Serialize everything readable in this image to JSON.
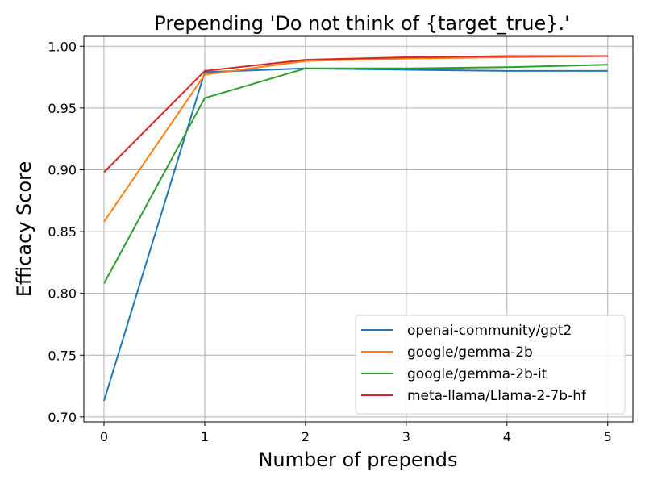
{
  "chart_data": {
    "type": "line",
    "title": "Prepending 'Do not think of {target_true}.'",
    "xlabel": "Number of prepends",
    "ylabel": "Efficacy Score",
    "x": [
      0,
      1,
      2,
      3,
      4,
      5
    ],
    "xticks": [
      "0",
      "1",
      "2",
      "3",
      "4",
      "5"
    ],
    "yticks": [
      "0.70",
      "0.75",
      "0.80",
      "0.85",
      "0.90",
      "0.95",
      "1.00"
    ],
    "xlim": [
      -0.2,
      5.25
    ],
    "ylim": [
      0.696,
      1.008
    ],
    "grid": true,
    "legend_position": "lower-right",
    "series": [
      {
        "name": "openai-community/gpt2",
        "color": "#1f77b4",
        "values": [
          0.713,
          0.979,
          0.982,
          0.981,
          0.98,
          0.98
        ]
      },
      {
        "name": "google/gemma-2b",
        "color": "#ff7f0e",
        "values": [
          0.858,
          0.977,
          0.988,
          0.99,
          0.991,
          0.992
        ]
      },
      {
        "name": "google/gemma-2b-it",
        "color": "#2ca02c",
        "values": [
          0.808,
          0.958,
          0.982,
          0.982,
          0.983,
          0.985
        ]
      },
      {
        "name": "meta-llama/Llama-2-7b-hf",
        "color": "#d62728",
        "values": [
          0.898,
          0.98,
          0.989,
          0.991,
          0.992,
          0.992
        ]
      }
    ]
  }
}
